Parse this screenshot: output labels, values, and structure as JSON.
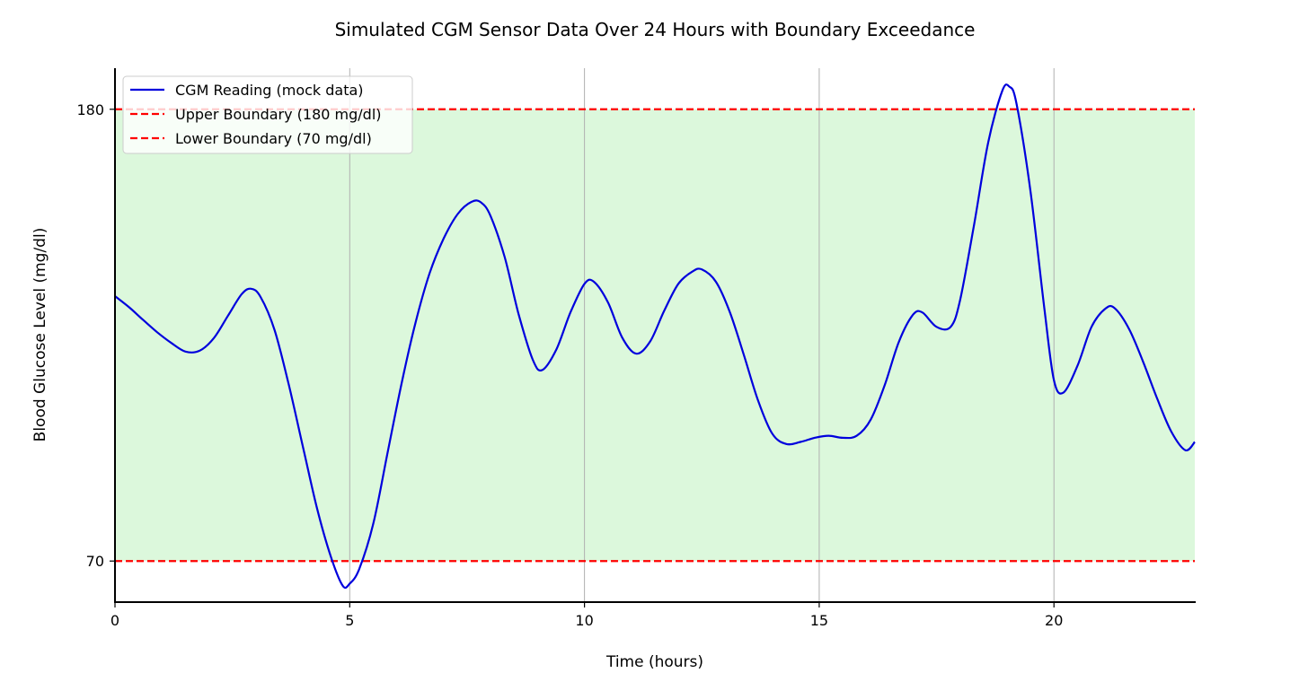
{
  "chart_data": {
    "type": "line",
    "title": "Simulated CGM Sensor Data Over 24 Hours with Boundary Exceedance",
    "xlabel": "Time (hours)",
    "ylabel": "Blood Glucose Level (mg/dl)",
    "xlim": [
      0,
      23
    ],
    "ylim": [
      60,
      190
    ],
    "xticks": [
      0,
      5,
      10,
      15,
      20
    ],
    "yticks": [
      70,
      180
    ],
    "grid": "x-only",
    "legend_position": "top-left",
    "shaded_range": {
      "from": 70,
      "to": 180,
      "color": "#dcf8dc"
    },
    "series": [
      {
        "name": "CGM Reading (mock data)",
        "color": "#0000dd",
        "style": "solid",
        "points": [
          [
            0,
            134.5
          ],
          [
            0.3,
            131.8
          ],
          [
            0.6,
            128.7
          ],
          [
            0.9,
            125.7
          ],
          [
            1.2,
            123.1
          ],
          [
            1.5,
            121.0
          ],
          [
            1.8,
            121.2
          ],
          [
            2.1,
            124.2
          ],
          [
            2.4,
            129.6
          ],
          [
            2.7,
            135.0
          ],
          [
            2.9,
            136.3
          ],
          [
            3.1,
            134.3
          ],
          [
            3.4,
            126.2
          ],
          [
            3.7,
            113.0
          ],
          [
            4.0,
            98.0
          ],
          [
            4.3,
            83.0
          ],
          [
            4.6,
            71.0
          ],
          [
            4.85,
            64.0
          ],
          [
            5.0,
            64.5
          ],
          [
            5.2,
            68.0
          ],
          [
            5.5,
            79.0
          ],
          [
            5.8,
            96.0
          ],
          [
            6.1,
            113.0
          ],
          [
            6.4,
            128.0
          ],
          [
            6.7,
            140.0
          ],
          [
            7.0,
            148.5
          ],
          [
            7.3,
            154.5
          ],
          [
            7.6,
            157.5
          ],
          [
            7.8,
            157.3
          ],
          [
            8.0,
            154.0
          ],
          [
            8.3,
            144.0
          ],
          [
            8.6,
            130.0
          ],
          [
            8.9,
            119.0
          ],
          [
            9.1,
            116.5
          ],
          [
            9.4,
            121.5
          ],
          [
            9.7,
            130.5
          ],
          [
            10.0,
            137.5
          ],
          [
            10.2,
            138.0
          ],
          [
            10.5,
            133.0
          ],
          [
            10.8,
            124.5
          ],
          [
            11.1,
            120.5
          ],
          [
            11.4,
            123.5
          ],
          [
            11.7,
            131.0
          ],
          [
            12.0,
            137.5
          ],
          [
            12.3,
            140.5
          ],
          [
            12.5,
            141.0
          ],
          [
            12.8,
            138.0
          ],
          [
            13.1,
            130.5
          ],
          [
            13.4,
            120.0
          ],
          [
            13.7,
            109.0
          ],
          [
            14.0,
            101.0
          ],
          [
            14.3,
            98.5
          ],
          [
            14.6,
            99.0
          ],
          [
            14.9,
            100.0
          ],
          [
            15.2,
            100.5
          ],
          [
            15.5,
            100.0
          ],
          [
            15.8,
            100.5
          ],
          [
            16.1,
            104.5
          ],
          [
            16.4,
            113.0
          ],
          [
            16.7,
            123.5
          ],
          [
            17.0,
            130.0
          ],
          [
            17.2,
            130.5
          ],
          [
            17.5,
            127.0
          ],
          [
            17.8,
            127.0
          ],
          [
            18.0,
            133.5
          ],
          [
            18.3,
            152.0
          ],
          [
            18.6,
            172.0
          ],
          [
            18.9,
            184.5
          ],
          [
            19.05,
            185.5
          ],
          [
            19.2,
            181.5
          ],
          [
            19.5,
            160.0
          ],
          [
            19.8,
            131.0
          ],
          [
            20.0,
            114.0
          ],
          [
            20.2,
            111.0
          ],
          [
            20.5,
            117.5
          ],
          [
            20.8,
            127.0
          ],
          [
            21.1,
            131.5
          ],
          [
            21.3,
            131.5
          ],
          [
            21.6,
            126.5
          ],
          [
            21.9,
            118.5
          ],
          [
            22.2,
            109.5
          ],
          [
            22.5,
            101.5
          ],
          [
            22.8,
            97.0
          ],
          [
            23.0,
            99.0
          ]
        ]
      },
      {
        "name": "Upper Boundary (180 mg/dl)",
        "color": "#ff0000",
        "style": "dashed",
        "y": 180
      },
      {
        "name": "Lower Boundary (70 mg/dl)",
        "color": "#ff0000",
        "style": "dashed",
        "y": 70
      }
    ]
  }
}
